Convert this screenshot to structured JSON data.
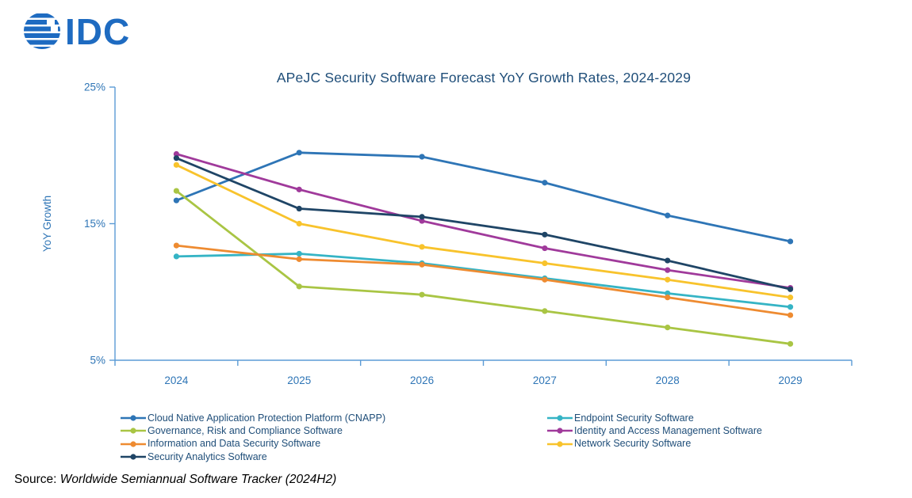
{
  "logo": {
    "text": "IDC",
    "color": "#1E6BC1"
  },
  "chart_data": {
    "type": "line",
    "title": "APeJC Security Software Forecast YoY Growth Rates, 2024-2029",
    "xlabel": "",
    "ylabel": "YoY Growth",
    "x": [
      "2024",
      "2025",
      "2026",
      "2027",
      "2028",
      "2029"
    ],
    "ylim": [
      5,
      25
    ],
    "y_ticks": [
      25,
      15,
      5
    ],
    "y_tick_labels": [
      "25%",
      "15%",
      "5%"
    ],
    "grid": false,
    "legend_position": "bottom-two-columns",
    "series": [
      {
        "key": "cnapp",
        "name": "Cloud Native Application Protection Platform (CNAPP)",
        "color": "#2E75B6",
        "values": [
          16.7,
          20.2,
          19.9,
          18.0,
          15.6,
          13.7
        ]
      },
      {
        "key": "endpoint-security",
        "name": "Endpoint Security Software",
        "color": "#35B4C5",
        "values": [
          12.6,
          12.8,
          12.1,
          11.0,
          9.9,
          8.9
        ]
      },
      {
        "key": "grc",
        "name": "Governance, Risk and Compliance Software",
        "color": "#A9C544",
        "values": [
          17.4,
          10.4,
          9.8,
          8.6,
          7.4,
          6.2
        ]
      },
      {
        "key": "iam",
        "name": "Identity and Access Management Software",
        "color": "#A03A9B",
        "values": [
          20.1,
          17.5,
          15.2,
          13.2,
          11.6,
          10.3
        ]
      },
      {
        "key": "info-data-security",
        "name": "Information and Data Security Software",
        "color": "#EE8B31",
        "values": [
          13.4,
          12.4,
          12.0,
          10.9,
          9.6,
          8.3
        ]
      },
      {
        "key": "network-security",
        "name": "Network Security Software",
        "color": "#F8C32C",
        "values": [
          19.3,
          15.0,
          13.3,
          12.1,
          10.9,
          9.6
        ]
      },
      {
        "key": "security-analytics",
        "name": "Security Analytics Software",
        "color": "#1F4566",
        "values": [
          19.8,
          16.1,
          15.5,
          14.2,
          12.3,
          10.2
        ]
      }
    ]
  },
  "source": {
    "prefix": "Source: ",
    "text": "Worldwide Semiannual Software Tracker (2024H2)"
  },
  "colors": {
    "title_text": "#1F4E79",
    "axis_line": "#5B9BD5",
    "tick_text": "#2E75B6",
    "legend_text": "#1F4E79",
    "source_text": "#000000"
  }
}
